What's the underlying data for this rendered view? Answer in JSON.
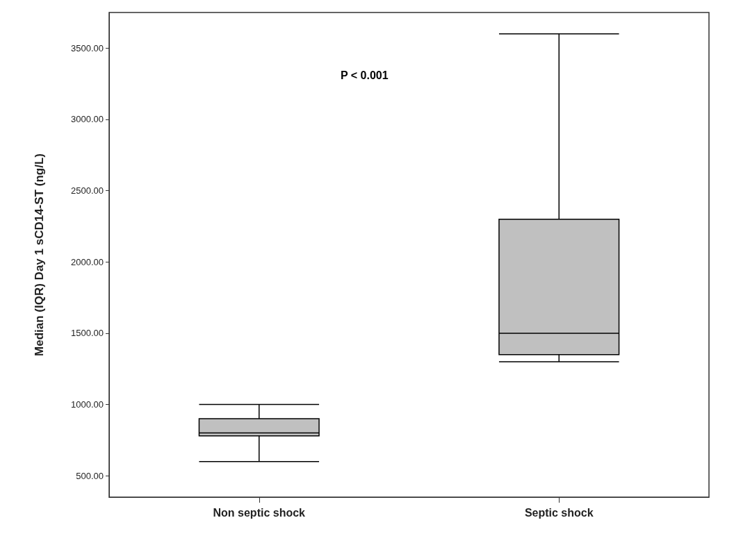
{
  "chart_data": {
    "type": "box",
    "ylabel": "Median (IQR) Day 1 sCD14-ST (ng/L)",
    "categories": [
      "Non septic shock",
      "Septic shock"
    ],
    "boxes": [
      {
        "low": 600,
        "q1": 780,
        "median": 800,
        "q3": 900,
        "high": 1000
      },
      {
        "low": 1300,
        "q1": 1350,
        "median": 1500,
        "q3": 2300,
        "high": 3600
      }
    ],
    "color": "#c0c0c0",
    "ylim": [
      350,
      3750
    ],
    "yticks": [
      {
        "value": 500,
        "label": "500.00"
      },
      {
        "value": 1000,
        "label": "1000.00"
      },
      {
        "value": 1500,
        "label": "1500.00"
      },
      {
        "value": 2000,
        "label": "2000.00"
      },
      {
        "value": 2500,
        "label": "2500.00"
      },
      {
        "value": 3000,
        "label": "3000.00"
      },
      {
        "value": 3500,
        "label": "3500.00"
      }
    ],
    "annotations": [
      "P < 0.001"
    ],
    "grid": false
  }
}
